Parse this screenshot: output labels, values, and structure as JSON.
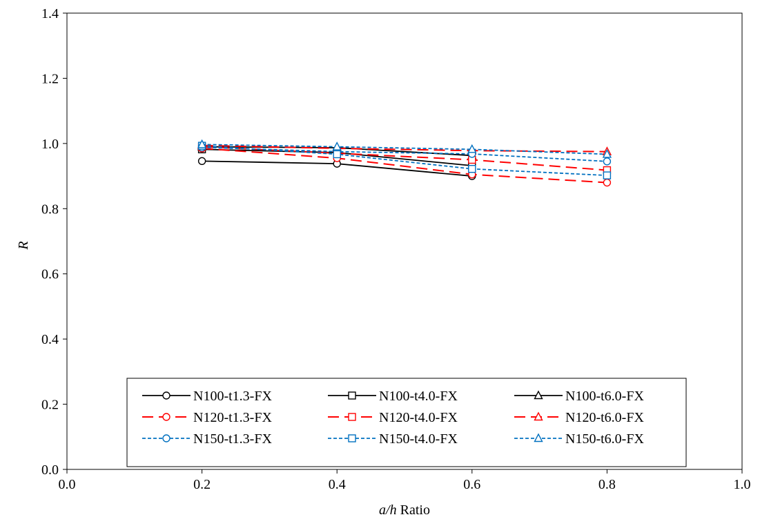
{
  "chart_data": {
    "type": "line",
    "title": "",
    "xlabel": {
      "italic": "a/h",
      "plain": " Ratio"
    },
    "ylabel": "R",
    "xlim": [
      0.0,
      1.0
    ],
    "ylim": [
      0.0,
      1.4
    ],
    "xticks": [
      "0.0",
      "0.2",
      "0.4",
      "0.6",
      "0.8",
      "1.0"
    ],
    "yticks": [
      "0.0",
      "0.2",
      "0.4",
      "0.6",
      "0.8",
      "1.0",
      "1.2",
      "1.4"
    ],
    "grid": false,
    "legend_position": "bottom-center",
    "series": [
      {
        "name": "N100-t1.3-FX",
        "color": "#000000",
        "dash": "solid",
        "marker": "circle",
        "x": [
          0.2,
          0.4,
          0.6
        ],
        "y": [
          0.946,
          0.938,
          0.9
        ]
      },
      {
        "name": "N100-t4.0-FX",
        "color": "#000000",
        "dash": "solid",
        "marker": "square",
        "x": [
          0.2,
          0.4,
          0.6
        ],
        "y": [
          0.982,
          0.972,
          0.932
        ]
      },
      {
        "name": "N100-t6.0-FX",
        "color": "#000000",
        "dash": "solid",
        "marker": "triangle",
        "x": [
          0.2,
          0.4,
          0.6
        ],
        "y": [
          0.99,
          0.987,
          0.963
        ]
      },
      {
        "name": "N120-t1.3-FX",
        "color": "#ff0000",
        "dash": "long",
        "marker": "circle",
        "x": [
          0.2,
          0.4,
          0.6,
          0.8
        ],
        "y": [
          0.985,
          0.955,
          0.905,
          0.88
        ]
      },
      {
        "name": "N120-t4.0-FX",
        "color": "#ff0000",
        "dash": "long",
        "marker": "square",
        "x": [
          0.2,
          0.4,
          0.6,
          0.8
        ],
        "y": [
          0.99,
          0.97,
          0.95,
          0.918
        ]
      },
      {
        "name": "N120-t6.0-FX",
        "color": "#ff0000",
        "dash": "long",
        "marker": "triangle",
        "x": [
          0.2,
          0.4,
          0.6,
          0.8
        ],
        "y": [
          0.994,
          0.985,
          0.978,
          0.975
        ]
      },
      {
        "name": "N150-t1.3-FX",
        "color": "#0070c0",
        "dash": "short",
        "marker": "circle",
        "x": [
          0.2,
          0.4,
          0.6,
          0.8
        ],
        "y": [
          0.988,
          0.975,
          0.968,
          0.945
        ]
      },
      {
        "name": "N150-t4.0-FX",
        "color": "#0070c0",
        "dash": "short",
        "marker": "square",
        "x": [
          0.2,
          0.4,
          0.6,
          0.8
        ],
        "y": [
          0.993,
          0.967,
          0.922,
          0.902
        ]
      },
      {
        "name": "N150-t6.0-FX",
        "color": "#0070c0",
        "dash": "short",
        "marker": "triangle",
        "x": [
          0.2,
          0.4,
          0.6,
          0.8
        ],
        "y": [
          0.997,
          0.99,
          0.982,
          0.967
        ]
      }
    ]
  }
}
